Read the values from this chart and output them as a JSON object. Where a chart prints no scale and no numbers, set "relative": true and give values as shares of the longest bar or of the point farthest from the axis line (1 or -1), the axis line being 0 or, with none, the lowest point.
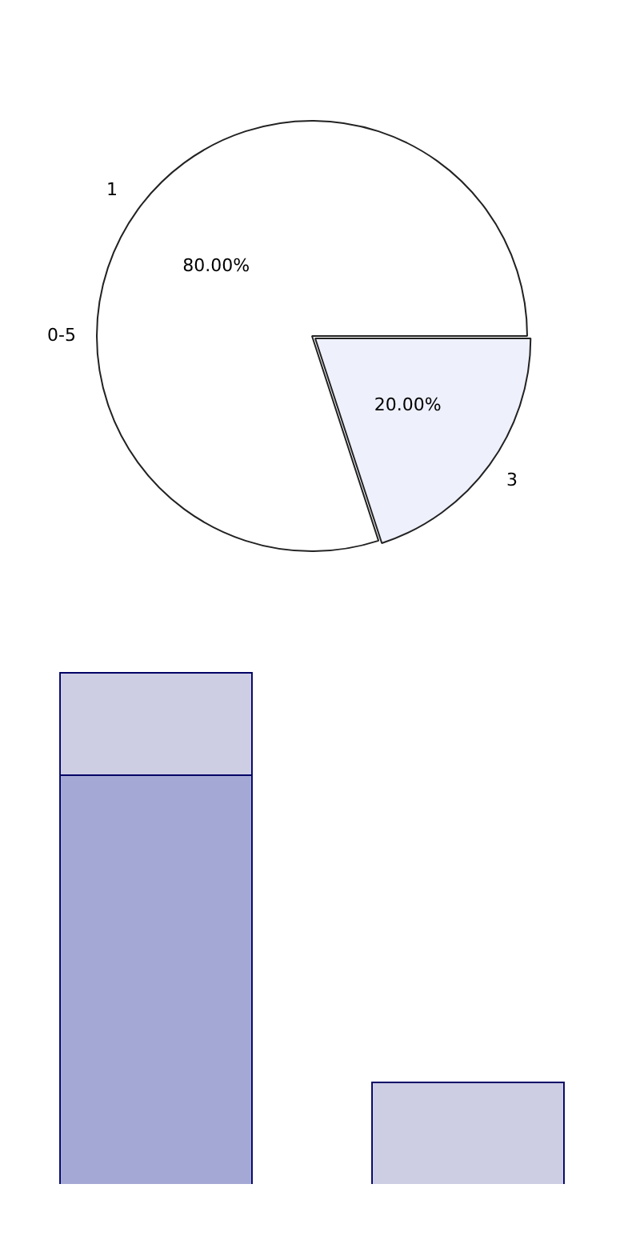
{
  "chart_data": [
    {
      "type": "pie",
      "categories": [
        "3",
        "1"
      ],
      "values": [
        20,
        80
      ],
      "colors": [
        "#eef0fb",
        "#ffffff"
      ],
      "value_labels": [
        "20.00%",
        "80.00%"
      ],
      "annotations": [
        "0-5"
      ],
      "legend": false
    },
    {
      "type": "bar",
      "categories": [
        null,
        null
      ],
      "stacked": true,
      "relative": true,
      "legend": false,
      "series": [
        {
          "color": "#a4a8d4",
          "values": [
            0.8,
            0
          ]
        },
        {
          "color": "#cdcde4",
          "values": [
            0.2,
            0.2
          ]
        }
      ]
    }
  ]
}
